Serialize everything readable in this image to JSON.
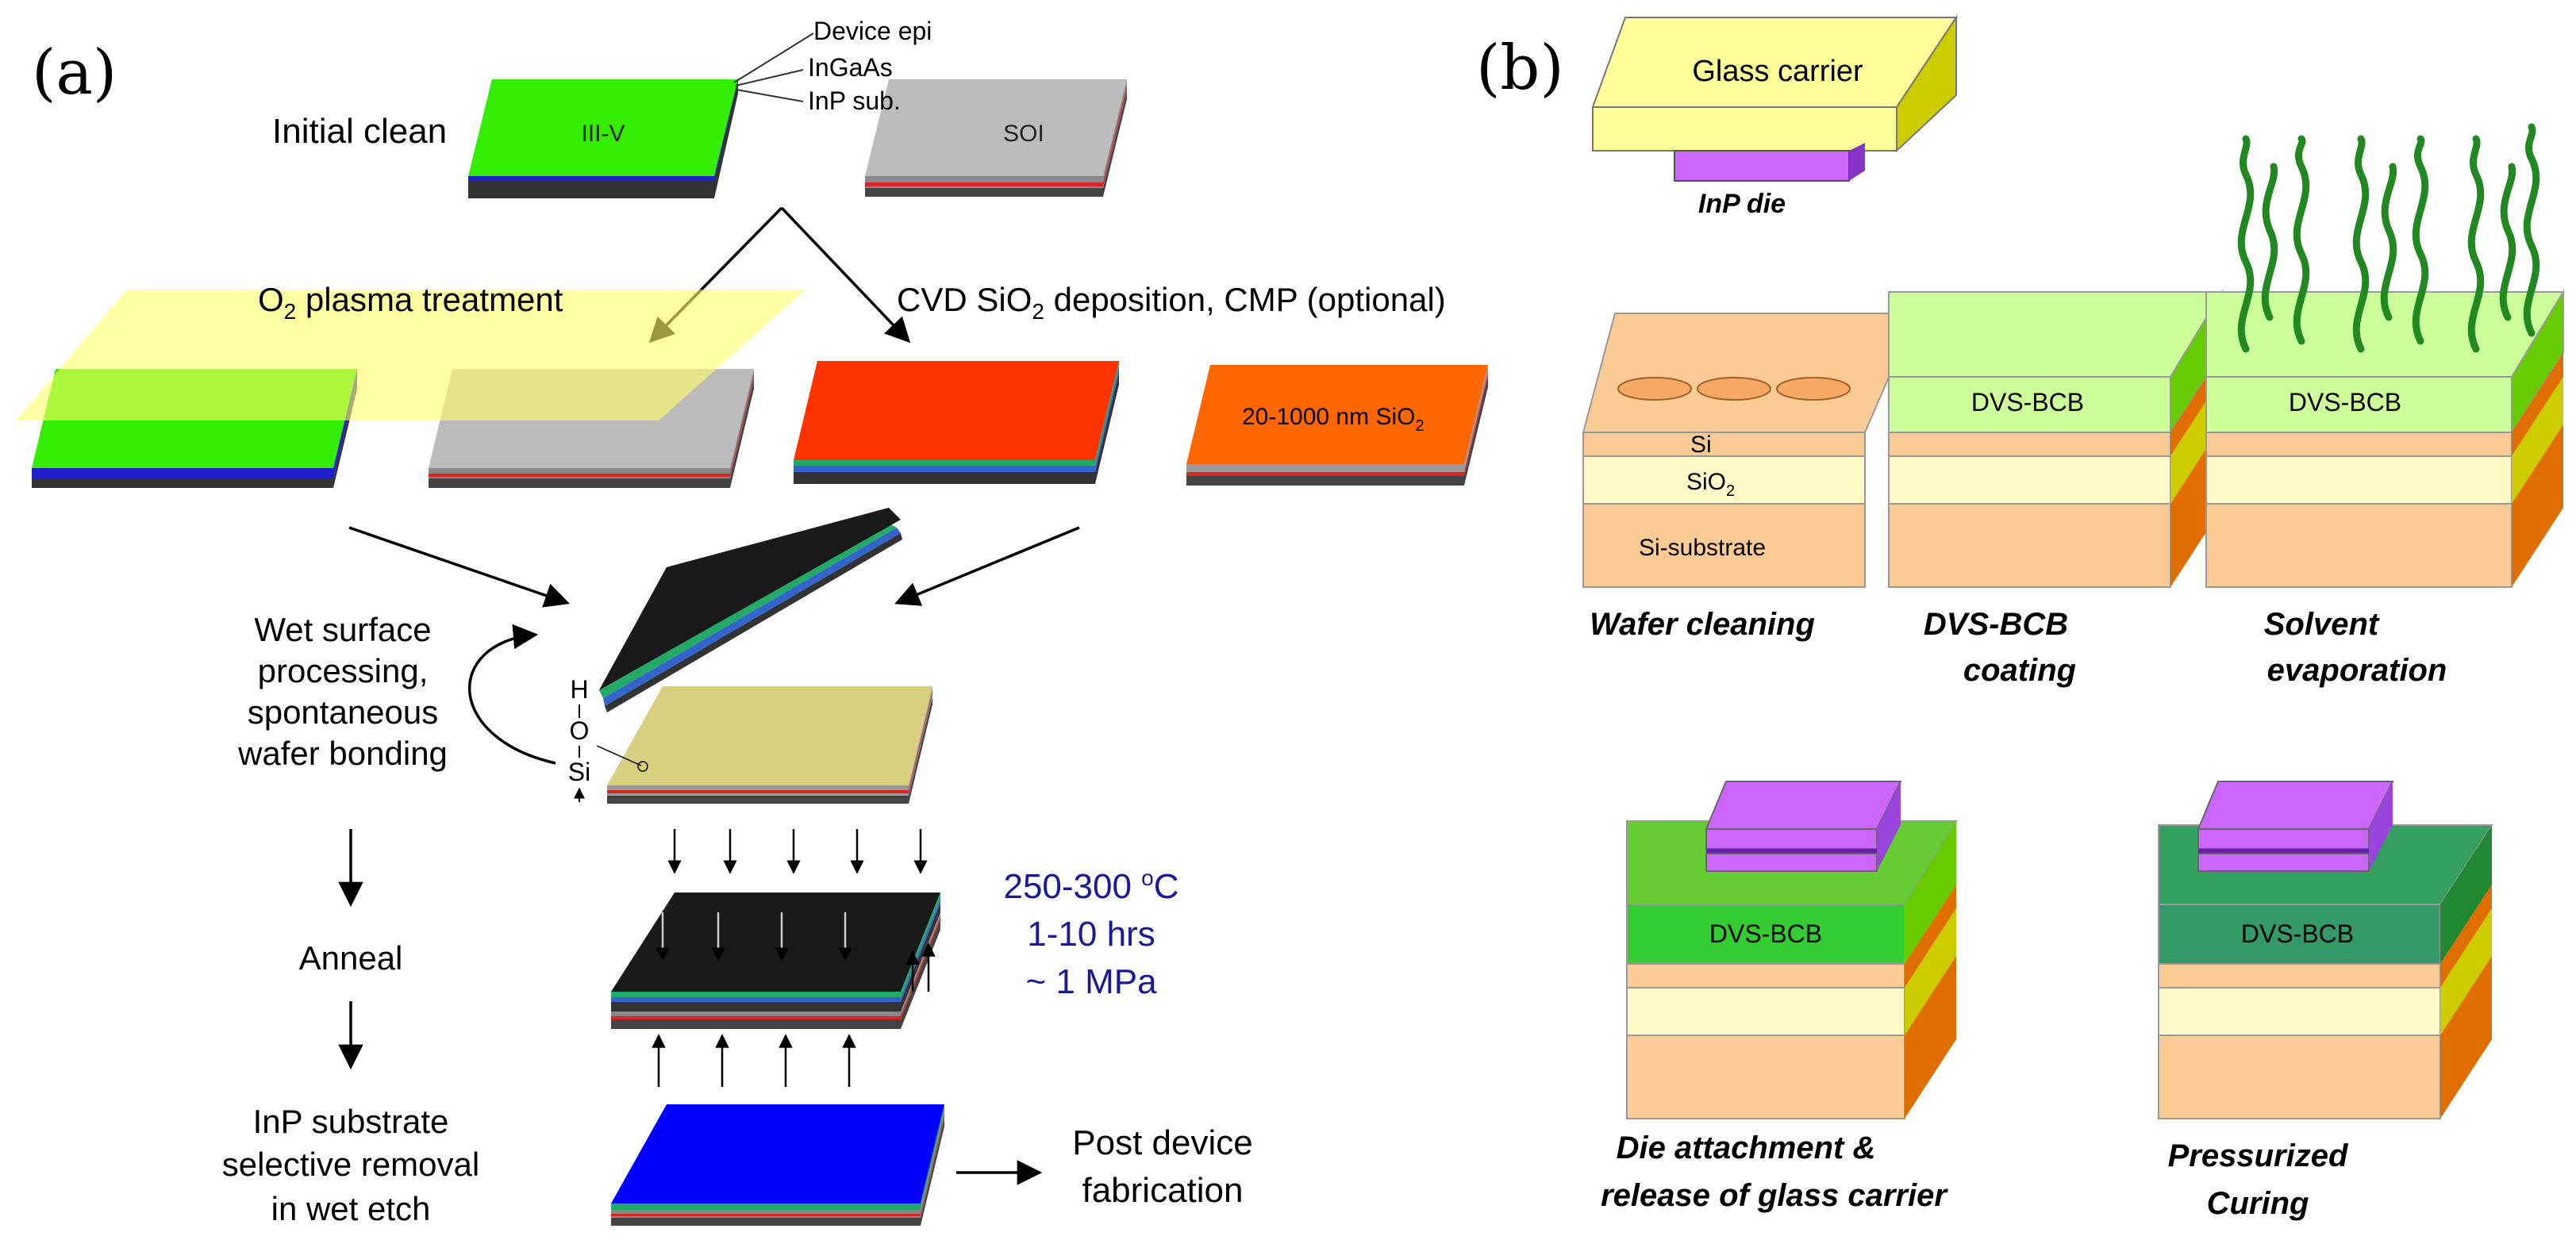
{
  "panel_a": {
    "label": "(a)",
    "layer_labels": {
      "device_epi": "Device epi",
      "ingaas": "InGaAs",
      "inp_sub": "InP sub."
    },
    "initial_clean": "Initial clean",
    "iii_v": "III-V",
    "soi": "SOI",
    "o2_plasma": {
      "pre": "O",
      "sub": "2",
      "post": " plasma treatment"
    },
    "cvd": {
      "pre": "CVD SiO",
      "sub": "2",
      "post": " deposition, CMP (optional)"
    },
    "sio2_thickness": {
      "pre": "20-1000 nm SiO",
      "sub": "2"
    },
    "wet_surface": [
      "Wet surface",
      "processing,",
      "spontaneous",
      "wafer bonding"
    ],
    "molecule": {
      "h": "H",
      "o": "O",
      "si": "Si"
    },
    "anneal": "Anneal",
    "anneal_conditions": {
      "temp_pre": "250-300 ",
      "temp_sup": "o",
      "temp_post": "C",
      "time": "1-10 hrs",
      "pressure": "~ 1 MPa"
    },
    "inp_removal": [
      "InP substrate",
      "selective removal",
      "in wet etch"
    ],
    "post_device": [
      "Post device",
      "fabrication"
    ]
  },
  "panel_b": {
    "label": "(b)",
    "glass_carrier": "Glass carrier",
    "inp_die": "InP die",
    "si": "Si",
    "sio2": {
      "pre": "SiO",
      "sub": "2"
    },
    "si_substrate": "Si-substrate",
    "dvs_bcb": "DVS-BCB",
    "steps": {
      "wafer_cleaning": "Wafer cleaning",
      "coating": [
        "DVS-BCB",
        "coating"
      ],
      "solvent": [
        "Solvent",
        "evaporation"
      ],
      "die_attach": [
        "Die attachment &",
        "release of glass carrier"
      ],
      "pressurized": [
        "Pressurized",
        "Curing"
      ]
    }
  },
  "colors": {
    "iii_v_green": "#33ee00",
    "soi_gray": "#bbbbbb",
    "plasma_yellow": "#ffff66",
    "sio2_red": "#ff3300",
    "sio2_orange": "#ff6600",
    "bonded_black": "#1a1a1a",
    "final_blue": "#0000ff",
    "annotation_blue": "#1a1a99",
    "si_peach": "#fbcb95",
    "sio2_cream": "#fff9c8",
    "bcb_lightgreen": "#ccff99",
    "bcb_green": "#33cc33",
    "bcb_darkgreen": "#339966",
    "die_purple": "#cc66ff",
    "glass_yellow": "#ffff99",
    "vapor_green": "#228822"
  }
}
